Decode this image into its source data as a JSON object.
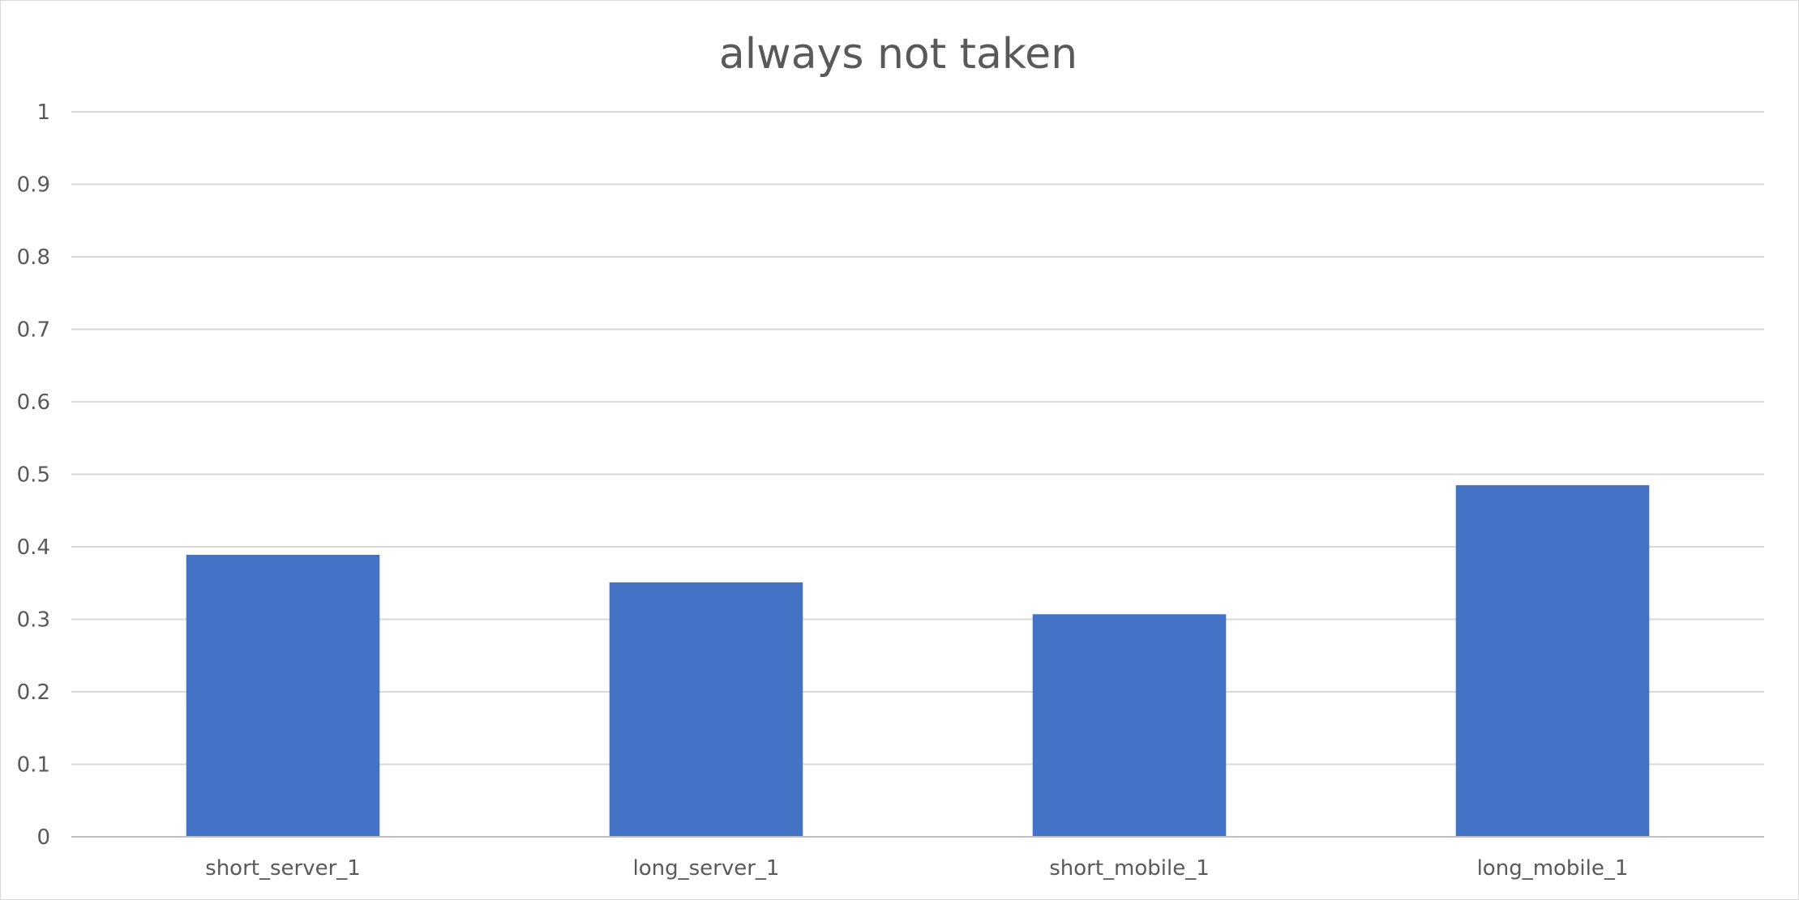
{
  "chart_data": {
    "type": "bar",
    "title": "always not taken",
    "xlabel": "",
    "ylabel": "",
    "categories": [
      "short_server_1",
      "long_server_1",
      "short_mobile_1",
      "long_mobile_1"
    ],
    "values": [
      0.389,
      0.351,
      0.307,
      0.485
    ],
    "ylim": [
      0,
      1
    ],
    "yticks": [
      "0",
      "0.1",
      "0.2",
      "0.3",
      "0.4",
      "0.5",
      "0.6",
      "0.7",
      "0.8",
      "0.9",
      "1"
    ],
    "grid": true,
    "legend": "none",
    "bar_color": "#4472C4"
  }
}
